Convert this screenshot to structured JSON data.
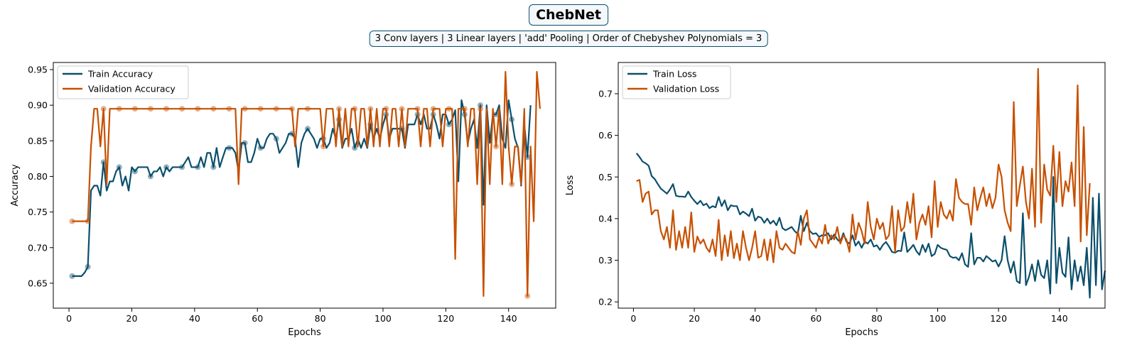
{
  "title": "ChebNet",
  "subtitle": "3 Conv layers | 3 Linear layers | 'add' Pooling | Order of Chebyshev Polynomials = 3",
  "colors": {
    "train": "#0b4f6c",
    "validation": "#c75000"
  },
  "chart_data": [
    {
      "type": "line",
      "title": "",
      "xlabel": "Epochs",
      "ylabel": "Accuracy",
      "xlim": [
        -5,
        155
      ],
      "ylim": [
        0.615,
        0.96
      ],
      "xticks": [
        0,
        20,
        40,
        60,
        80,
        100,
        120,
        140
      ],
      "yticks": [
        0.65,
        0.7,
        0.75,
        0.8,
        0.85,
        0.9,
        0.95
      ],
      "ytick_labels": [
        "0.65",
        "0.70",
        "0.75",
        "0.80",
        "0.85",
        "0.90",
        "0.95"
      ],
      "legend": "top-left",
      "grid": false,
      "markers_every": 5,
      "series": [
        {
          "name": "Train Accuracy",
          "color": "#0b4f6c",
          "values": [
            0.66,
            0.66,
            0.66,
            0.66,
            0.665,
            0.673,
            0.78,
            0.787,
            0.787,
            0.773,
            0.82,
            0.78,
            0.793,
            0.793,
            0.807,
            0.813,
            0.787,
            0.8,
            0.78,
            0.813,
            0.807,
            0.813,
            0.813,
            0.813,
            0.813,
            0.8,
            0.807,
            0.807,
            0.813,
            0.8,
            0.813,
            0.807,
            0.813,
            0.813,
            0.813,
            0.813,
            0.82,
            0.827,
            0.813,
            0.813,
            0.813,
            0.827,
            0.813,
            0.833,
            0.833,
            0.813,
            0.84,
            0.813,
            0.827,
            0.84,
            0.84,
            0.84,
            0.833,
            0.807,
            0.847,
            0.847,
            0.82,
            0.82,
            0.833,
            0.853,
            0.84,
            0.84,
            0.853,
            0.86,
            0.86,
            0.853,
            0.833,
            0.84,
            0.847,
            0.86,
            0.86,
            0.853,
            0.813,
            0.847,
            0.86,
            0.867,
            0.86,
            0.853,
            0.84,
            0.853,
            0.853,
            0.84,
            0.847,
            0.867,
            0.853,
            0.88,
            0.84,
            0.853,
            0.853,
            0.867,
            0.84,
            0.853,
            0.84,
            0.853,
            0.84,
            0.873,
            0.853,
            0.867,
            0.853,
            0.873,
            0.887,
            0.853,
            0.867,
            0.867,
            0.867,
            0.867,
            0.84,
            0.873,
            0.873,
            0.873,
            0.887,
            0.873,
            0.887,
            0.867,
            0.867,
            0.887,
            0.873,
            0.853,
            0.887,
            0.887,
            0.873,
            0.88,
            0.893,
            0.793,
            0.907,
            0.887,
            0.847,
            0.867,
            0.88,
            0.84,
            0.9,
            0.76,
            0.9,
            0.847,
            0.887,
            0.887,
            0.9,
            0.853,
            0.84,
            0.907,
            0.88,
            0.853,
            0.84,
            0.787,
            0.873,
            0.827,
            0.9
          ]
        },
        {
          "name": "Validation Accuracy",
          "color": "#c75000",
          "values": [
            0.737,
            0.737,
            0.737,
            0.737,
            0.737,
            0.737,
            0.842,
            0.895,
            0.895,
            0.842,
            0.895,
            0.789,
            0.895,
            0.895,
            0.895,
            0.895,
            0.895,
            0.895,
            0.895,
            0.895,
            0.895,
            0.895,
            0.895,
            0.895,
            0.895,
            0.895,
            0.895,
            0.895,
            0.895,
            0.895,
            0.895,
            0.895,
            0.895,
            0.895,
            0.895,
            0.895,
            0.895,
            0.895,
            0.895,
            0.895,
            0.895,
            0.895,
            0.895,
            0.895,
            0.895,
            0.895,
            0.895,
            0.895,
            0.895,
            0.895,
            0.895,
            0.895,
            0.895,
            0.789,
            0.895,
            0.895,
            0.895,
            0.895,
            0.895,
            0.895,
            0.895,
            0.895,
            0.895,
            0.895,
            0.895,
            0.895,
            0.895,
            0.895,
            0.895,
            0.895,
            0.895,
            0.842,
            0.895,
            0.895,
            0.895,
            0.895,
            0.895,
            0.895,
            0.895,
            0.895,
            0.842,
            0.895,
            0.895,
            0.895,
            0.842,
            0.895,
            0.842,
            0.895,
            0.842,
            0.895,
            0.895,
            0.842,
            0.895,
            0.895,
            0.842,
            0.895,
            0.842,
            0.895,
            0.842,
            0.895,
            0.895,
            0.842,
            0.895,
            0.895,
            0.842,
            0.895,
            0.842,
            0.895,
            0.895,
            0.895,
            0.895,
            0.842,
            0.895,
            0.895,
            0.842,
            0.895,
            0.895,
            0.895,
            0.842,
            0.895,
            0.895,
            0.895,
            0.684,
            0.895,
            0.895,
            0.895,
            0.842,
            0.895,
            0.895,
            0.789,
            0.895,
            0.632,
            0.895,
            0.789,
            0.895,
            0.842,
            0.895,
            0.789,
            0.947,
            0.842,
            0.789,
            0.842,
            0.842,
            0.789,
            0.895,
            0.632,
            0.842,
            0.737,
            0.947,
            0.895
          ]
        }
      ]
    },
    {
      "type": "line",
      "title": "",
      "xlabel": "Epochs",
      "ylabel": "Loss",
      "xlim": [
        -5,
        155
      ],
      "ylim": [
        0.185,
        0.775
      ],
      "xticks": [
        0,
        20,
        40,
        60,
        80,
        100,
        120,
        140
      ],
      "yticks": [
        0.2,
        0.3,
        0.4,
        0.5,
        0.6,
        0.7
      ],
      "ytick_labels": [
        "0.2",
        "0.3",
        "0.4",
        "0.5",
        "0.6",
        "0.7"
      ],
      "legend": "top-left",
      "grid": false,
      "series": [
        {
          "name": "Train Loss",
          "color": "#0b4f6c",
          "values": [
            0.557,
            0.548,
            0.537,
            0.533,
            0.527,
            0.502,
            0.495,
            0.483,
            0.472,
            0.466,
            0.46,
            0.47,
            0.483,
            0.455,
            0.453,
            0.453,
            0.452,
            0.465,
            0.452,
            0.443,
            0.435,
            0.443,
            0.432,
            0.436,
            0.425,
            0.43,
            0.427,
            0.452,
            0.43,
            0.444,
            0.42,
            0.432,
            0.43,
            0.43,
            0.41,
            0.417,
            0.412,
            0.406,
            0.424,
            0.395,
            0.405,
            0.402,
            0.39,
            0.4,
            0.388,
            0.395,
            0.384,
            0.402,
            0.377,
            0.372,
            0.376,
            0.38,
            0.37,
            0.363,
            0.407,
            0.37,
            0.39,
            0.37,
            0.363,
            0.365,
            0.356,
            0.36,
            0.36,
            0.365,
            0.35,
            0.362,
            0.35,
            0.344,
            0.365,
            0.345,
            0.34,
            0.36,
            0.335,
            0.345,
            0.33,
            0.345,
            0.34,
            0.35,
            0.333,
            0.336,
            0.325,
            0.337,
            0.344,
            0.333,
            0.32,
            0.318,
            0.323,
            0.322,
            0.367,
            0.32,
            0.328,
            0.337,
            0.322,
            0.313,
            0.337,
            0.32,
            0.34,
            0.31,
            0.315,
            0.337,
            0.33,
            0.327,
            0.325,
            0.31,
            0.306,
            0.307,
            0.3,
            0.317,
            0.29,
            0.284,
            0.365,
            0.29,
            0.306,
            0.306,
            0.297,
            0.31,
            0.304,
            0.297,
            0.3,
            0.285,
            0.3,
            0.358,
            0.3,
            0.27,
            0.297,
            0.25,
            0.245,
            0.413,
            0.24,
            0.26,
            0.29,
            0.25,
            0.3,
            0.265,
            0.257,
            0.3,
            0.22,
            0.5,
            0.245,
            0.33,
            0.27,
            0.26,
            0.355,
            0.23,
            0.3,
            0.25,
            0.285,
            0.24,
            0.33,
            0.21,
            0.45,
            0.24,
            0.46,
            0.23,
            0.275
          ]
        },
        {
          "name": "Validation Loss",
          "color": "#c75000",
          "values": [
            0.49,
            0.493,
            0.44,
            0.46,
            0.465,
            0.41,
            0.42,
            0.42,
            0.37,
            0.35,
            0.38,
            0.33,
            0.42,
            0.325,
            0.37,
            0.33,
            0.38,
            0.33,
            0.415,
            0.32,
            0.357,
            0.34,
            0.35,
            0.33,
            0.32,
            0.35,
            0.31,
            0.397,
            0.3,
            0.36,
            0.31,
            0.37,
            0.305,
            0.34,
            0.3,
            0.37,
            0.33,
            0.3,
            0.33,
            0.37,
            0.306,
            0.31,
            0.35,
            0.3,
            0.35,
            0.295,
            0.37,
            0.33,
            0.325,
            0.34,
            0.33,
            0.32,
            0.316,
            0.37,
            0.337,
            0.4,
            0.42,
            0.35,
            0.34,
            0.33,
            0.355,
            0.34,
            0.385,
            0.34,
            0.36,
            0.35,
            0.38,
            0.34,
            0.36,
            0.35,
            0.32,
            0.41,
            0.35,
            0.39,
            0.37,
            0.34,
            0.44,
            0.38,
            0.35,
            0.4,
            0.375,
            0.39,
            0.35,
            0.36,
            0.43,
            0.32,
            0.42,
            0.37,
            0.38,
            0.44,
            0.39,
            0.46,
            0.35,
            0.39,
            0.41,
            0.385,
            0.43,
            0.355,
            0.49,
            0.38,
            0.44,
            0.41,
            0.4,
            0.42,
            0.395,
            0.495,
            0.45,
            0.44,
            0.435,
            0.435,
            0.385,
            0.475,
            0.42,
            0.45,
            0.475,
            0.43,
            0.46,
            0.425,
            0.45,
            0.53,
            0.5,
            0.42,
            0.39,
            0.37,
            0.68,
            0.43,
            0.48,
            0.525,
            0.44,
            0.4,
            0.52,
            0.38,
            0.76,
            0.39,
            0.53,
            0.47,
            0.455,
            0.575,
            0.44,
            0.56,
            0.43,
            0.49,
            0.465,
            0.535,
            0.43,
            0.72,
            0.345,
            0.62,
            0.36,
            0.485
          ]
        }
      ]
    }
  ]
}
